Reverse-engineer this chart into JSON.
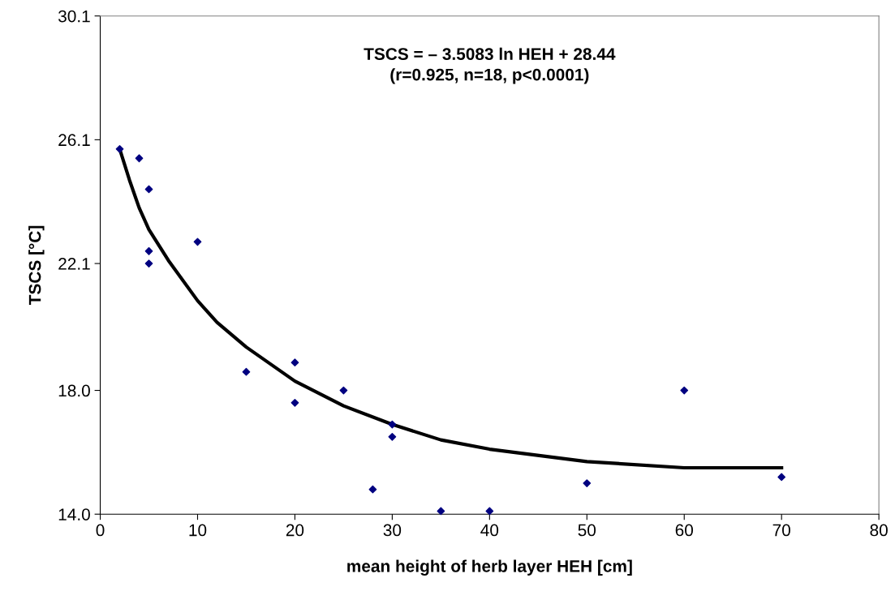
{
  "chart_data": {
    "type": "scatter",
    "xlabel": "mean height of herb layer HEH [cm]",
    "ylabel": "TSCS [°C]",
    "annotations": [
      "TSCS = – 3.5083 ln HEH + 28.44",
      "(r=0.925, n=18, p<0.0001)"
    ],
    "xlim": [
      0,
      80
    ],
    "xticks": [
      0,
      10,
      20,
      30,
      40,
      50,
      60,
      70,
      80
    ],
    "ylim": [
      14.0,
      30.1
    ],
    "yticks": [
      {
        "value": 14.0,
        "label": "14.0"
      },
      {
        "value": 18.0,
        "label": "18.0"
      },
      {
        "value": 22.1,
        "label": "22.1"
      },
      {
        "value": 26.1,
        "label": "26.1"
      },
      {
        "value": 30.1,
        "label": "30.1"
      }
    ],
    "grid": false,
    "series": [
      {
        "marker": "diamond",
        "color": "#000080",
        "x": [
          2,
          4,
          5,
          5,
          5,
          10,
          15,
          20,
          20,
          25,
          28,
          30,
          30,
          35,
          40,
          50,
          60,
          70
        ],
        "values": [
          25.8,
          25.5,
          24.5,
          22.5,
          22.1,
          22.8,
          18.6,
          18.9,
          17.6,
          18.0,
          14.8,
          16.9,
          16.5,
          14.1,
          14.1,
          15.0,
          18.0,
          15.2
        ]
      },
      {
        "type": "line",
        "marker": "none",
        "line_style": "solid",
        "color": "#000000",
        "x": [
          2,
          3,
          4,
          5,
          7,
          10,
          12,
          15,
          20,
          25,
          30,
          35,
          40,
          50,
          60,
          70
        ],
        "values": [
          25.8,
          24.8,
          23.9,
          23.2,
          22.2,
          20.9,
          20.2,
          19.4,
          18.3,
          17.5,
          16.9,
          16.4,
          16.1,
          15.7,
          15.5,
          15.5
        ]
      }
    ]
  }
}
